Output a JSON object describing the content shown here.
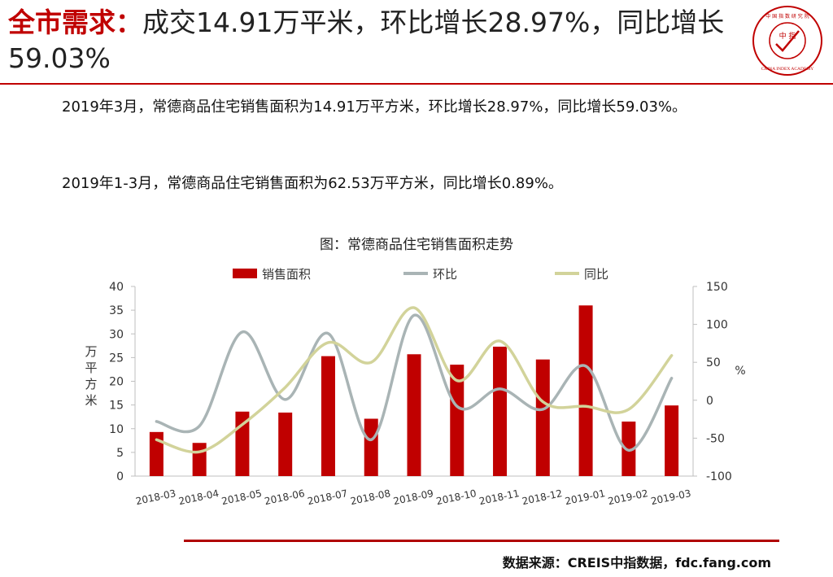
{
  "header": {
    "title_highlight": "全市需求：",
    "title_rest": "成交14.91万平米，环比增长28.97%，同比增长59.03%"
  },
  "logo": {
    "center_text": "中 指",
    "ring_text": "CHINA INDEX ACADEMY",
    "top_text": "中 国 指 数 研 究 院",
    "color": "#c00000"
  },
  "paragraphs": [
    "2019年3月，常德商品住宅销售面积为14.91万平方米，环比增长28.97%，同比增长59.03%。",
    "2019年1-3月，常德商品住宅销售面积为62.53万平方米，同比增长0.89%。"
  ],
  "chart_data": {
    "type": "bar",
    "title": "图：常德商品住宅销售面积走势",
    "categories": [
      "2018-03",
      "2018-04",
      "2018-05",
      "2018-06",
      "2018-07",
      "2018-08",
      "2018-09",
      "2018-10",
      "2018-11",
      "2018-12",
      "2019-01",
      "2019-02",
      "2019-03"
    ],
    "series": [
      {
        "name": "销售面积",
        "kind": "bar",
        "axis": "left",
        "color": "#c00000",
        "values": [
          9.3,
          7.0,
          13.6,
          13.4,
          25.3,
          12.1,
          25.7,
          23.5,
          27.3,
          24.6,
          36.0,
          11.5,
          14.9
        ]
      },
      {
        "name": "环比",
        "kind": "line",
        "axis": "right",
        "color": "#a9b4b5",
        "values": [
          -28,
          -34,
          90,
          1,
          88,
          -52,
          112,
          -8,
          15,
          -12,
          45,
          -66,
          29
        ]
      },
      {
        "name": "同比",
        "kind": "line",
        "axis": "right",
        "color": "#d2d39a",
        "values": [
          -52,
          -68,
          -32,
          17,
          76,
          50,
          122,
          26,
          78,
          -2,
          -8,
          -12,
          59
        ]
      }
    ],
    "ylabel": "万平方米",
    "y2label": "%",
    "ylim": [
      0,
      40
    ],
    "yticks": [
      0,
      5,
      10,
      15,
      20,
      25,
      30,
      35,
      40
    ],
    "y2lim": [
      -100,
      150
    ],
    "y2ticks": [
      -100,
      -50,
      0,
      50,
      100,
      150
    ],
    "legend_position": "top",
    "grid": false
  },
  "footer": {
    "source": "数据来源：CREIS中指数据，fdc.fang.com"
  }
}
